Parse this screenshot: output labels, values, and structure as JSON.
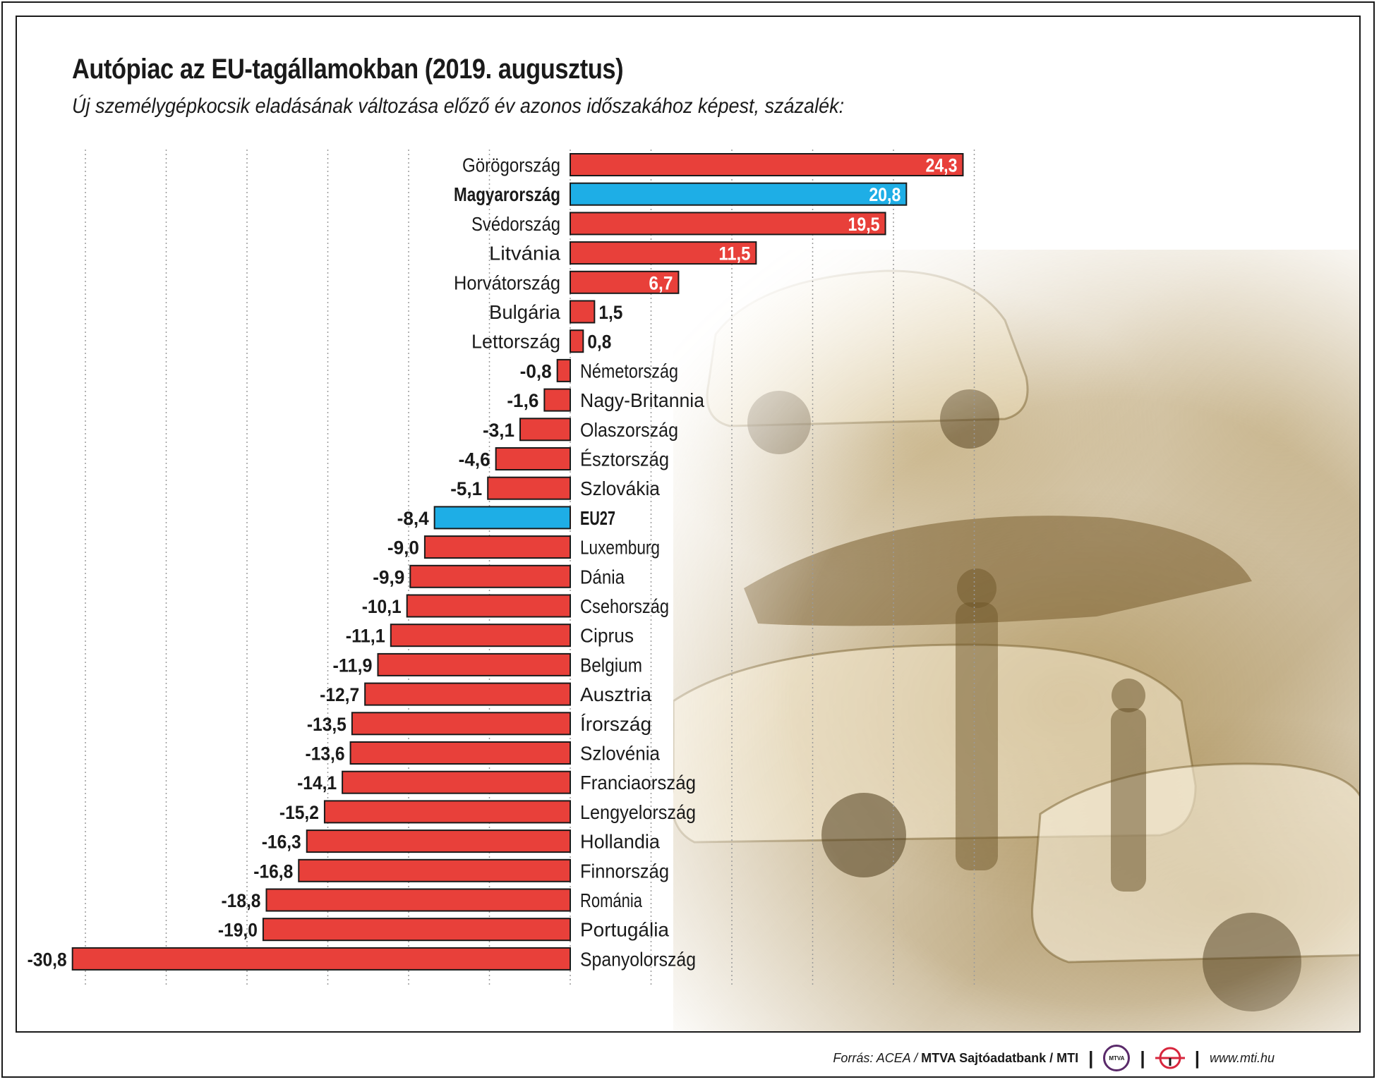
{
  "header": {
    "title": "Autópiac az EU-tagállamokban (2019. augusztus)",
    "subtitle": "Új személygépkocsik eladásának változása előző év azonos időszakához képest, százalék:"
  },
  "chart_data": {
    "type": "bar",
    "orientation": "horizontal",
    "title": "Autópiac az EU-tagállamokban (2019. augusztus)",
    "subtitle": "Új személygépkocsik eladásának változása előző év azonos időszakához képest, százalék:",
    "xlim": [
      -30,
      25
    ],
    "grid": true,
    "categories": [
      "Görögország",
      "Magyarország",
      "Svédország",
      "Litvánia",
      "Horvátország",
      "Bulgária",
      "Lettország",
      "Németország",
      "Nagy-Britannia",
      "Olaszország",
      "Észtország",
      "Szlovákia",
      "EU27",
      "Luxemburg",
      "Dánia",
      "Csehország",
      "Ciprus",
      "Belgium",
      "Ausztria",
      "Írország",
      "Szlovénia",
      "Franciaország",
      "Lengyelország",
      "Hollandia",
      "Finnország",
      "Románia",
      "Portugália",
      "Spanyolország"
    ],
    "values": [
      24.3,
      20.8,
      19.5,
      11.5,
      6.7,
      1.5,
      0.8,
      -0.8,
      -1.6,
      -3.1,
      -4.6,
      -5.1,
      -8.4,
      -9.0,
      -9.9,
      -10.1,
      -11.1,
      -11.9,
      -12.7,
      -13.5,
      -13.6,
      -14.1,
      -15.2,
      -16.3,
      -16.8,
      -18.8,
      -19.0,
      -30.8
    ],
    "value_labels": [
      "24,3",
      "20,8",
      "19,5",
      "11,5",
      "6,7",
      "1,5",
      "0,8",
      "-0,8",
      "-1,6",
      "-3,1",
      "-4,6",
      "-5,1",
      "-8,4",
      "-9,0",
      "-9,9",
      "-10,1",
      "-11,1",
      "-11,9",
      "-12,7",
      "-13,5",
      "-13,6",
      "-14,1",
      "-15,2",
      "-16,3",
      "-16,8",
      "-18,8",
      "-19,0",
      "-30,8"
    ],
    "highlighted": [
      "Magyarország",
      "EU27"
    ],
    "colors": {
      "default": "#e8403a",
      "highlight": "#1eaee6",
      "outline": "#1a1a1a"
    }
  },
  "footer": {
    "source_label": "Forrás: ACEA /",
    "source_bold": "MTVA Sajtóadatbank / MTI",
    "logo_mtva": "MTVA",
    "website": "www.mti.hu"
  }
}
